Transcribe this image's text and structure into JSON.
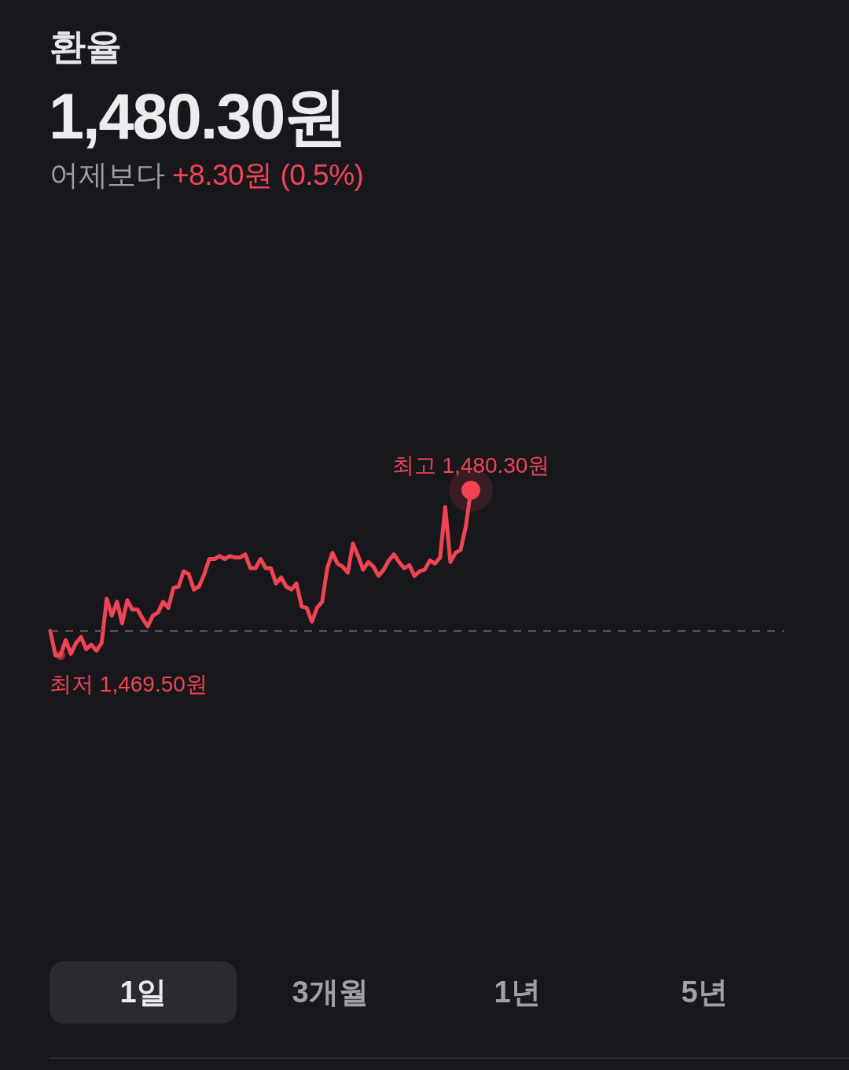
{
  "chart_data": {
    "type": "line",
    "title": "환율",
    "subtitle": "1,480.30원",
    "categories": [
      null,
      null,
      null,
      null,
      null,
      null,
      null,
      null,
      null,
      null,
      null,
      null,
      null,
      null,
      null,
      null,
      null,
      null,
      null,
      null,
      null,
      null,
      null,
      null,
      null,
      null,
      null,
      null,
      null,
      null,
      null,
      null,
      null,
      null,
      null,
      null,
      null,
      null,
      null,
      null,
      null,
      null,
      null,
      null,
      null,
      null,
      null,
      null,
      null,
      null,
      null,
      null,
      null,
      null,
      null,
      null,
      null,
      null,
      null,
      null,
      null,
      null,
      null,
      null,
      null,
      null,
      null,
      null,
      null,
      null,
      null,
      null,
      null,
      null,
      null,
      null,
      null,
      null,
      null,
      null,
      null,
      null,
      null,
      null,
      null,
      null,
      null,
      null,
      null,
      null,
      null,
      null,
      null,
      null,
      null,
      null,
      null,
      null,
      null,
      null,
      null,
      null,
      null,
      null,
      null,
      null,
      null,
      null,
      null,
      null,
      null,
      null,
      null,
      null,
      null,
      null,
      null,
      null,
      null,
      null,
      null,
      null,
      null,
      null,
      null,
      null,
      null,
      null,
      null,
      null,
      null,
      null,
      null,
      null,
      null,
      null,
      null,
      null,
      null,
      null,
      null,
      null,
      null,
      null
    ],
    "values": [
      1471.1,
      1469.5,
      1469.5,
      1470.5,
      1469.6,
      1470.3,
      1470.7,
      1469.9,
      1470.2,
      1469.8,
      1470.3,
      1473.2,
      1472.1,
      1473.0,
      1471.6,
      1473.1,
      1472.5,
      1472.5,
      1471.9,
      1471.4,
      1472.1,
      1472.3,
      1473.0,
      1472.6,
      1473.9,
      1474.0,
      1475.0,
      1474.8,
      1473.8,
      1474.0,
      1474.8,
      1475.8,
      1475.8,
      1476.0,
      1475.8,
      1476.0,
      1475.9,
      1475.9,
      1476.1,
      1475.2,
      1475.2,
      1475.8,
      1475.2,
      1475.2,
      1474.2,
      1474.6,
      1474.0,
      1473.8,
      1474.2,
      1472.7,
      1472.6,
      1471.7,
      1472.6,
      1473.0,
      1475.2,
      1476.2,
      1475.5,
      1475.3,
      1474.9,
      1476.8,
      1476.0,
      1475.1,
      1475.6,
      1475.3,
      1474.7,
      1475.1,
      1475.7,
      1476.1,
      1475.6,
      1475.2,
      1475.4,
      1474.7,
      1475.0,
      1475.1,
      1475.7,
      1475.5,
      1475.9,
      1479.2,
      1475.6,
      1476.2,
      1476.4,
      1477.9,
      1480.3,
      null,
      null,
      null,
      null,
      null,
      null,
      null,
      null,
      null,
      null,
      null,
      null,
      null,
      null,
      null,
      null,
      null,
      null,
      null,
      null,
      null,
      null,
      null,
      null,
      null,
      null,
      null,
      null,
      null,
      null,
      null,
      null,
      null,
      null,
      null,
      null,
      null,
      null,
      null,
      null,
      null,
      null,
      null,
      null,
      null,
      null,
      null,
      null,
      null,
      null,
      null,
      null,
      null,
      null,
      null,
      null,
      null,
      null,
      null,
      null,
      null
    ],
    "value_labels": [
      null,
      null,
      "최저 1,469.50원",
      null,
      null,
      null,
      null,
      null,
      null,
      null,
      null,
      null,
      null,
      null,
      null,
      null,
      null,
      null,
      null,
      null,
      null,
      null,
      null,
      null,
      null,
      null,
      null,
      null,
      null,
      null,
      null,
      null,
      null,
      null,
      null,
      null,
      null,
      null,
      null,
      null,
      null,
      null,
      null,
      null,
      null,
      null,
      null,
      null,
      null,
      null,
      null,
      null,
      null,
      null,
      null,
      null,
      null,
      null,
      null,
      null,
      null,
      null,
      null,
      null,
      null,
      null,
      null,
      null,
      null,
      null,
      null,
      null,
      null,
      null,
      null,
      null,
      null,
      null,
      null,
      null,
      null,
      null,
      "최고 1,480.30원",
      null,
      null,
      null,
      null,
      null,
      null,
      null,
      null,
      null,
      null,
      null,
      null,
      null,
      null,
      null,
      null,
      null,
      null,
      null,
      null,
      null,
      null,
      null,
      null,
      null,
      null,
      null,
      null,
      null,
      null,
      null,
      null,
      null,
      null,
      null,
      null,
      null,
      null,
      null,
      null,
      null,
      null,
      null,
      null,
      null,
      null,
      null,
      null,
      null,
      null,
      null,
      null,
      null,
      null,
      null,
      null,
      null,
      null,
      null,
      null,
      null
    ],
    "color": "#f04452",
    "ref_lines": [
      {
        "axis": "y",
        "value": 1471.1,
        "color": "#55565c",
        "line_style": "dashed"
      }
    ],
    "tick_labels": false,
    "annotations": [
      "어제보다",
      "+8.30원 (0.5%)",
      "1일",
      "3개월",
      "1년",
      "5년"
    ]
  }
}
